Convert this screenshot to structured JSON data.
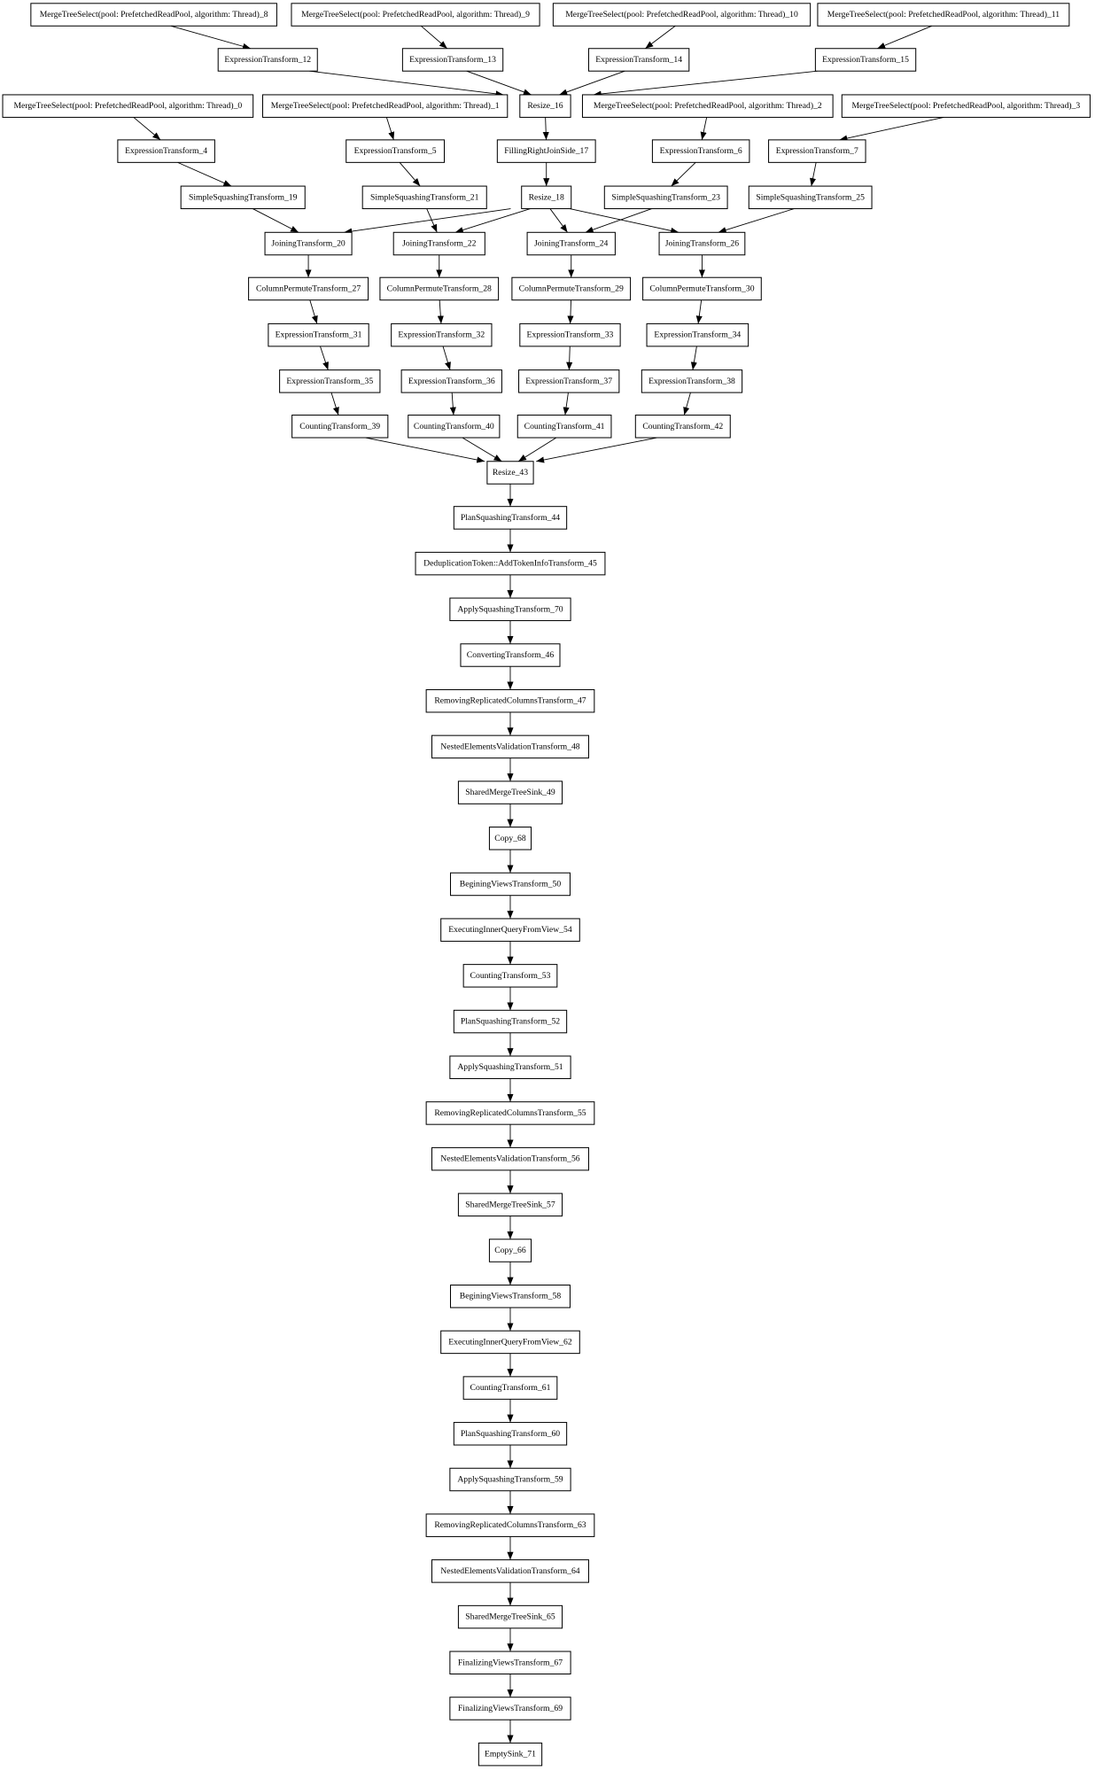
{
  "nodes": [
    {
      "id": "mts8",
      "label": "MergeTreeSelect(pool: PrefetchedReadPool, algorithm: Thread)_8"
    },
    {
      "id": "mts9",
      "label": "MergeTreeSelect(pool: PrefetchedReadPool, algorithm: Thread)_9"
    },
    {
      "id": "mts10",
      "label": "MergeTreeSelect(pool: PrefetchedReadPool, algorithm: Thread)_10"
    },
    {
      "id": "mts11",
      "label": "MergeTreeSelect(pool: PrefetchedReadPool, algorithm: Thread)_11"
    },
    {
      "id": "et12",
      "label": "ExpressionTransform_12"
    },
    {
      "id": "et13",
      "label": "ExpressionTransform_13"
    },
    {
      "id": "et14",
      "label": "ExpressionTransform_14"
    },
    {
      "id": "et15",
      "label": "ExpressionTransform_15"
    },
    {
      "id": "mts0",
      "label": "MergeTreeSelect(pool: PrefetchedReadPool, algorithm: Thread)_0"
    },
    {
      "id": "mts1",
      "label": "MergeTreeSelect(pool: PrefetchedReadPool, algorithm: Thread)_1"
    },
    {
      "id": "rs16",
      "label": "Resize_16"
    },
    {
      "id": "mts2",
      "label": "MergeTreeSelect(pool: PrefetchedReadPool, algorithm: Thread)_2"
    },
    {
      "id": "mts3",
      "label": "MergeTreeSelect(pool: PrefetchedReadPool, algorithm: Thread)_3"
    },
    {
      "id": "et4",
      "label": "ExpressionTransform_4"
    },
    {
      "id": "et5",
      "label": "ExpressionTransform_5"
    },
    {
      "id": "fr17",
      "label": "FillingRightJoinSide_17"
    },
    {
      "id": "et6",
      "label": "ExpressionTransform_6"
    },
    {
      "id": "et7",
      "label": "ExpressionTransform_7"
    },
    {
      "id": "sst19",
      "label": "SimpleSquashingTransform_19"
    },
    {
      "id": "sst21",
      "label": "SimpleSquashingTransform_21"
    },
    {
      "id": "rs18",
      "label": "Resize_18"
    },
    {
      "id": "sst23",
      "label": "SimpleSquashingTransform_23"
    },
    {
      "id": "sst25",
      "label": "SimpleSquashingTransform_25"
    },
    {
      "id": "jt20",
      "label": "JoiningTransform_20"
    },
    {
      "id": "jt22",
      "label": "JoiningTransform_22"
    },
    {
      "id": "jt24",
      "label": "JoiningTransform_24"
    },
    {
      "id": "jt26",
      "label": "JoiningTransform_26"
    },
    {
      "id": "cpt27",
      "label": "ColumnPermuteTransform_27"
    },
    {
      "id": "cpt28",
      "label": "ColumnPermuteTransform_28"
    },
    {
      "id": "cpt29",
      "label": "ColumnPermuteTransform_29"
    },
    {
      "id": "cpt30",
      "label": "ColumnPermuteTransform_30"
    },
    {
      "id": "et31",
      "label": "ExpressionTransform_31"
    },
    {
      "id": "et32",
      "label": "ExpressionTransform_32"
    },
    {
      "id": "et33",
      "label": "ExpressionTransform_33"
    },
    {
      "id": "et34",
      "label": "ExpressionTransform_34"
    },
    {
      "id": "et35",
      "label": "ExpressionTransform_35"
    },
    {
      "id": "et36",
      "label": "ExpressionTransform_36"
    },
    {
      "id": "et37",
      "label": "ExpressionTransform_37"
    },
    {
      "id": "et38",
      "label": "ExpressionTransform_38"
    },
    {
      "id": "ct39",
      "label": "CountingTransform_39"
    },
    {
      "id": "ct40",
      "label": "CountingTransform_40"
    },
    {
      "id": "ct41",
      "label": "CountingTransform_41"
    },
    {
      "id": "ct42",
      "label": "CountingTransform_42"
    },
    {
      "id": "rs43",
      "label": "Resize_43"
    },
    {
      "id": "c44",
      "label": "PlanSquashingTransform_44"
    },
    {
      "id": "c45",
      "label": "DeduplicationToken::AddTokenInfoTransform_45"
    },
    {
      "id": "c70",
      "label": "ApplySquashingTransform_70"
    },
    {
      "id": "c46",
      "label": "ConvertingTransform_46"
    },
    {
      "id": "c47",
      "label": "RemovingReplicatedColumnsTransform_47"
    },
    {
      "id": "c48",
      "label": "NestedElementsValidationTransform_48"
    },
    {
      "id": "c49",
      "label": "SharedMergeTreeSink_49"
    },
    {
      "id": "c68",
      "label": "Copy_68"
    },
    {
      "id": "c50",
      "label": "BeginingViewsTransform_50"
    },
    {
      "id": "c54",
      "label": "ExecutingInnerQueryFromView_54"
    },
    {
      "id": "c53",
      "label": "CountingTransform_53"
    },
    {
      "id": "c52",
      "label": "PlanSquashingTransform_52"
    },
    {
      "id": "c51",
      "label": "ApplySquashingTransform_51"
    },
    {
      "id": "c55",
      "label": "RemovingReplicatedColumnsTransform_55"
    },
    {
      "id": "c56",
      "label": "NestedElementsValidationTransform_56"
    },
    {
      "id": "c57",
      "label": "SharedMergeTreeSink_57"
    },
    {
      "id": "c66",
      "label": "Copy_66"
    },
    {
      "id": "c58",
      "label": "BeginingViewsTransform_58"
    },
    {
      "id": "c62",
      "label": "ExecutingInnerQueryFromView_62"
    },
    {
      "id": "c61",
      "label": "CountingTransform_61"
    },
    {
      "id": "c60",
      "label": "PlanSquashingTransform_60"
    },
    {
      "id": "c59",
      "label": "ApplySquashingTransform_59"
    },
    {
      "id": "c63",
      "label": "RemovingReplicatedColumnsTransform_63"
    },
    {
      "id": "c64",
      "label": "NestedElementsValidationTransform_64"
    },
    {
      "id": "c65",
      "label": "SharedMergeTreeSink_65"
    },
    {
      "id": "c67",
      "label": "FinalizingViewsTransform_67"
    },
    {
      "id": "c69",
      "label": "FinalizingViewsTransform_69"
    },
    {
      "id": "c71",
      "label": "EmptySink_71"
    }
  ],
  "edges": [
    [
      "mts8",
      "et12"
    ],
    [
      "mts9",
      "et13"
    ],
    [
      "mts10",
      "et14"
    ],
    [
      "mts11",
      "et15"
    ],
    [
      "et12",
      "rs16"
    ],
    [
      "et13",
      "rs16"
    ],
    [
      "et14",
      "rs16"
    ],
    [
      "et15",
      "rs16"
    ],
    [
      "mts0",
      "et4"
    ],
    [
      "mts1",
      "et5"
    ],
    [
      "mts2",
      "et6"
    ],
    [
      "mts3",
      "et7"
    ],
    [
      "rs16",
      "fr17"
    ],
    [
      "fr17",
      "rs18"
    ],
    [
      "et4",
      "sst19"
    ],
    [
      "et5",
      "sst21"
    ],
    [
      "et6",
      "sst23"
    ],
    [
      "et7",
      "sst25"
    ],
    [
      "rs18",
      "jt20"
    ],
    [
      "rs18",
      "jt22"
    ],
    [
      "rs18",
      "jt24"
    ],
    [
      "rs18",
      "jt26"
    ],
    [
      "sst19",
      "jt20"
    ],
    [
      "sst21",
      "jt22"
    ],
    [
      "sst23",
      "jt24"
    ],
    [
      "sst25",
      "jt26"
    ],
    [
      "jt20",
      "cpt27"
    ],
    [
      "jt22",
      "cpt28"
    ],
    [
      "jt24",
      "cpt29"
    ],
    [
      "jt26",
      "cpt30"
    ],
    [
      "cpt27",
      "et31"
    ],
    [
      "cpt28",
      "et32"
    ],
    [
      "cpt29",
      "et33"
    ],
    [
      "cpt30",
      "et34"
    ],
    [
      "et31",
      "et35"
    ],
    [
      "et32",
      "et36"
    ],
    [
      "et33",
      "et37"
    ],
    [
      "et34",
      "et38"
    ],
    [
      "et35",
      "ct39"
    ],
    [
      "et36",
      "ct40"
    ],
    [
      "et37",
      "ct41"
    ],
    [
      "et38",
      "ct42"
    ],
    [
      "ct39",
      "rs43"
    ],
    [
      "ct40",
      "rs43"
    ],
    [
      "ct41",
      "rs43"
    ],
    [
      "ct42",
      "rs43"
    ],
    [
      "rs43",
      "c44"
    ],
    [
      "c44",
      "c45"
    ],
    [
      "c45",
      "c70"
    ],
    [
      "c70",
      "c46"
    ],
    [
      "c46",
      "c47"
    ],
    [
      "c47",
      "c48"
    ],
    [
      "c48",
      "c49"
    ],
    [
      "c49",
      "c68"
    ],
    [
      "c68",
      "c50"
    ],
    [
      "c50",
      "c54"
    ],
    [
      "c54",
      "c53"
    ],
    [
      "c53",
      "c52"
    ],
    [
      "c52",
      "c51"
    ],
    [
      "c51",
      "c55"
    ],
    [
      "c55",
      "c56"
    ],
    [
      "c56",
      "c57"
    ],
    [
      "c57",
      "c66"
    ],
    [
      "c66",
      "c58"
    ],
    [
      "c58",
      "c62"
    ],
    [
      "c62",
      "c61"
    ],
    [
      "c61",
      "c60"
    ],
    [
      "c60",
      "c59"
    ],
    [
      "c59",
      "c63"
    ],
    [
      "c63",
      "c64"
    ],
    [
      "c64",
      "c65"
    ],
    [
      "c65",
      "c67"
    ],
    [
      "c67",
      "c69"
    ],
    [
      "c69",
      "c71"
    ]
  ]
}
